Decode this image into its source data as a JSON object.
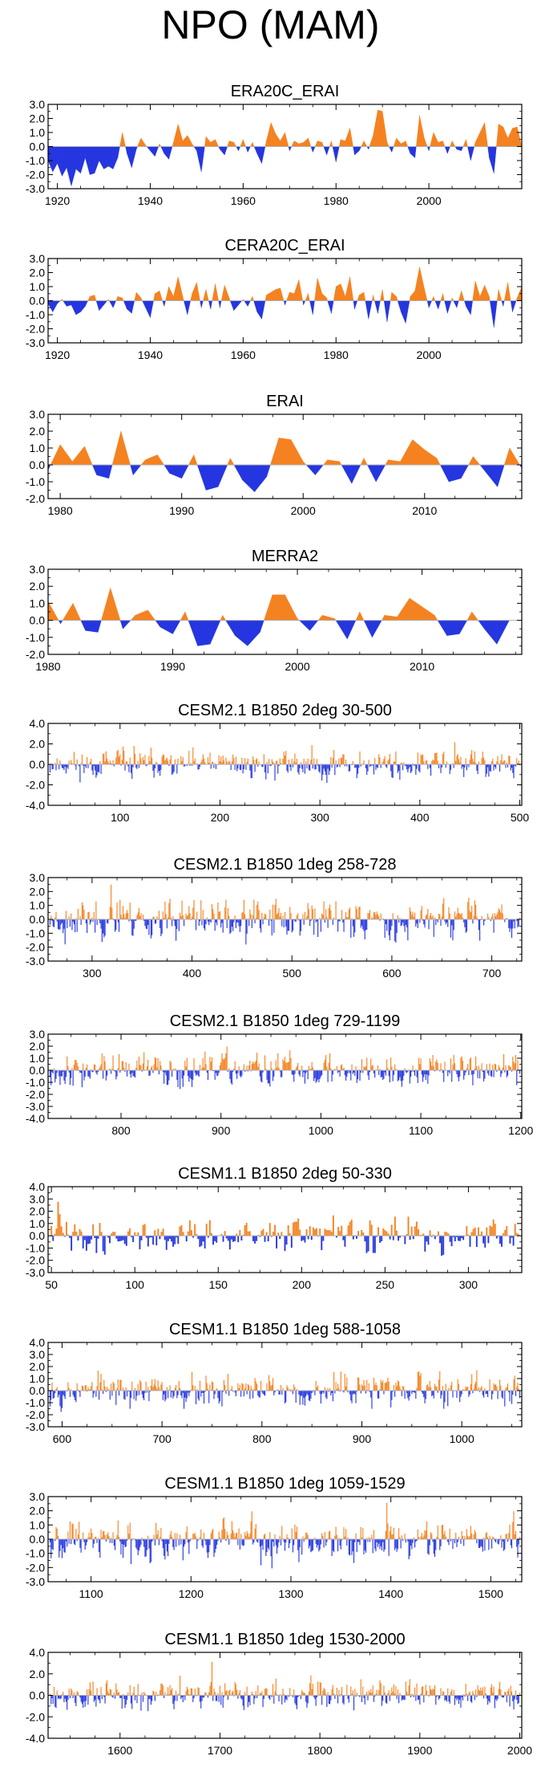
{
  "title": "NPO (MAM)",
  "colors": {
    "positive": "#f58220",
    "negative": "#2536e0",
    "axis": "#000000",
    "zero": "#b0b0b0"
  },
  "chart_data": [
    {
      "title": "ERA20C_ERAI",
      "type": "area",
      "xlim": [
        1918,
        2020
      ],
      "ylim": [
        -3.0,
        3.0
      ],
      "yticks": [
        "3.0",
        "2.0",
        "1.0",
        "0.0",
        "-1.0",
        "-2.0",
        "-3.0"
      ],
      "xticks": [
        1920,
        1940,
        1960,
        1980,
        2000
      ],
      "xtick_labels": [
        "1920",
        "1940",
        "1960",
        "1980",
        "2000"
      ],
      "x": [
        1918,
        1919,
        1920,
        1921,
        1922,
        1923,
        1924,
        1925,
        1926,
        1927,
        1928,
        1929,
        1930,
        1931,
        1932,
        1933,
        1934,
        1935,
        1936,
        1937,
        1938,
        1939,
        1940,
        1941,
        1942,
        1943,
        1944,
        1945,
        1946,
        1947,
        1948,
        1949,
        1950,
        1951,
        1952,
        1953,
        1954,
        1955,
        1956,
        1957,
        1958,
        1959,
        1960,
        1961,
        1962,
        1963,
        1964,
        1965,
        1966,
        1967,
        1968,
        1969,
        1970,
        1971,
        1972,
        1973,
        1974,
        1975,
        1976,
        1977,
        1978,
        1979,
        1980,
        1981,
        1982,
        1983,
        1984,
        1985,
        1986,
        1987,
        1988,
        1989,
        1990,
        1991,
        1992,
        1993,
        1994,
        1995,
        1996,
        1997,
        1998,
        1999,
        2000,
        2001,
        2002,
        2003,
        2004,
        2005,
        2006,
        2007,
        2008,
        2009,
        2010,
        2011,
        2012,
        2013,
        2014,
        2015,
        2016,
        2017,
        2018,
        2019,
        2020
      ],
      "values": [
        -1.0,
        -1.8,
        -1.2,
        -2.1,
        -1.5,
        -2.8,
        -1.6,
        -1.9,
        -0.8,
        -2.0,
        -1.9,
        -1.0,
        -1.6,
        -1.4,
        -1.6,
        -0.8,
        1.0,
        -0.5,
        -1.5,
        -0.2,
        0.6,
        0.1,
        -0.3,
        -0.7,
        0.2,
        -0.5,
        -0.9,
        0.3,
        1.6,
        0.4,
        0.8,
        0.2,
        -0.3,
        -1.8,
        0.7,
        0.3,
        0.5,
        -0.2,
        -0.6,
        0.4,
        0.3,
        -0.3,
        0.5,
        -0.4,
        0.3,
        -0.5,
        -1.2,
        0.4,
        1.7,
        0.9,
        0.4,
        1.0,
        -0.3,
        0.4,
        0.2,
        0.3,
        0.6,
        -0.4,
        0.4,
        0.3,
        -0.6,
        0.4,
        -1.1,
        0.5,
        0.4,
        1.3,
        -0.6,
        -0.3,
        0.4,
        -0.2,
        0.8,
        2.6,
        2.5,
        0.3,
        -0.4,
        0.6,
        0.2,
        0.4,
        -0.5,
        -0.8,
        2.2,
        0.6,
        -0.3,
        1.0,
        0.3,
        0.4,
        -0.5,
        0.4,
        -0.2,
        -0.3,
        0.5,
        -1.0,
        0.3,
        1.0,
        1.7,
        -0.8,
        -1.9,
        1.6,
        1.4,
        0.6,
        1.3,
        1.4,
        0.0
      ]
    },
    {
      "title": "CERA20C_ERAI",
      "type": "area",
      "xlim": [
        1918,
        2020
      ],
      "ylim": [
        -3.0,
        3.0
      ],
      "yticks": [
        "3.0",
        "2.0",
        "1.0",
        "0.0",
        "-1.0",
        "-2.0",
        "-3.0"
      ],
      "xticks": [
        1920,
        1940,
        1960,
        1980,
        2000
      ],
      "xtick_labels": [
        "1920",
        "1940",
        "1960",
        "1980",
        "2000"
      ],
      "x": [
        1918,
        1919,
        1920,
        1921,
        1922,
        1923,
        1924,
        1925,
        1926,
        1927,
        1928,
        1929,
        1930,
        1931,
        1932,
        1933,
        1934,
        1935,
        1936,
        1937,
        1938,
        1939,
        1940,
        1941,
        1942,
        1943,
        1944,
        1945,
        1946,
        1947,
        1948,
        1949,
        1950,
        1951,
        1952,
        1953,
        1954,
        1955,
        1956,
        1957,
        1958,
        1959,
        1960,
        1961,
        1962,
        1963,
        1964,
        1965,
        1966,
        1967,
        1968,
        1969,
        1970,
        1971,
        1972,
        1973,
        1974,
        1975,
        1976,
        1977,
        1978,
        1979,
        1980,
        1981,
        1982,
        1983,
        1984,
        1985,
        1986,
        1987,
        1988,
        1989,
        1990,
        1991,
        1992,
        1993,
        1994,
        1995,
        1996,
        1997,
        1998,
        1999,
        2000,
        2001,
        2002,
        2003,
        2004,
        2005,
        2006,
        2007,
        2008,
        2009,
        2010,
        2011,
        2012,
        2013,
        2014,
        2015,
        2016,
        2017,
        2018,
        2019,
        2020
      ],
      "values": [
        -0.2,
        -0.8,
        -0.2,
        0.1,
        -0.4,
        -0.3,
        -1.0,
        -0.8,
        -0.4,
        0.3,
        0.4,
        -0.7,
        -0.3,
        0.1,
        -0.5,
        0.3,
        0.2,
        -0.6,
        -0.9,
        0.6,
        0.2,
        -0.5,
        -1.2,
        0.5,
        0.7,
        -0.4,
        1.0,
        0.3,
        1.7,
        0.3,
        -1.0,
        0.5,
        1.3,
        -0.5,
        0.8,
        -0.6,
        1.2,
        -0.5,
        1.1,
        0.2,
        -0.7,
        -0.3,
        0.1,
        -0.4,
        0.3,
        -0.8,
        -1.3,
        0.4,
        0.6,
        0.8,
        0.9,
        -0.3,
        0.6,
        0.5,
        1.5,
        -0.3,
        0.5,
        -1.0,
        1.6,
        0.5,
        0.2,
        -0.9,
        1.0,
        1.2,
        0.3,
        1.7,
        -0.6,
        0.4,
        0.6,
        -1.3,
        0.4,
        -0.9,
        0.8,
        -1.5,
        0.6,
        0.3,
        -0.8,
        -1.6,
        0.3,
        0.7,
        2.4,
        0.9,
        -0.5,
        0.3,
        -0.6,
        0.5,
        -0.9,
        0.2,
        -0.5,
        0.7,
        -0.4,
        -1.0,
        1.4,
        0.3,
        1.1,
        0.3,
        -1.9,
        0.8,
        -0.4,
        1.3,
        -0.8,
        0.2,
        1.0
      ]
    },
    {
      "title": "ERAI",
      "type": "area",
      "xlim": [
        1979,
        2018
      ],
      "ylim": [
        -2.0,
        3.0
      ],
      "yticks": [
        "3.0",
        "2.0",
        "1.0",
        "0.0",
        "-1.0",
        "-2.0"
      ],
      "xticks": [
        1980,
        1990,
        2000,
        2010
      ],
      "xtick_labels": [
        "1980",
        "1990",
        "2000",
        "2010"
      ],
      "x": [
        1979,
        1980,
        1981,
        1982,
        1983,
        1984,
        1985,
        1986,
        1987,
        1988,
        1989,
        1990,
        1991,
        1992,
        1993,
        1994,
        1995,
        1996,
        1997,
        1998,
        1999,
        2000,
        2001,
        2002,
        2003,
        2004,
        2005,
        2006,
        2007,
        2008,
        2009,
        2010,
        2011,
        2012,
        2013,
        2014,
        2015,
        2016,
        2017,
        2018
      ],
      "values": [
        -0.3,
        1.2,
        0.2,
        1.1,
        -0.6,
        -0.8,
        2.0,
        -0.6,
        0.3,
        0.6,
        -0.5,
        -0.8,
        0.6,
        -1.5,
        -1.3,
        0.4,
        -0.9,
        -1.6,
        -0.7,
        1.6,
        1.5,
        0.2,
        -0.6,
        0.3,
        0.2,
        -1.1,
        0.4,
        -1.0,
        0.3,
        0.2,
        1.5,
        0.9,
        0.4,
        -1.0,
        -0.8,
        0.5,
        -0.4,
        -1.3,
        1.0,
        -0.2
      ]
    },
    {
      "title": "MERRA2",
      "type": "area",
      "xlim": [
        1980,
        2018
      ],
      "ylim": [
        -2.0,
        3.0
      ],
      "yticks": [
        "3.0",
        "2.0",
        "1.0",
        "0.0",
        "-1.0",
        "-2.0"
      ],
      "xticks": [
        1980,
        1990,
        2000,
        2010
      ],
      "xtick_labels": [
        "1980",
        "1990",
        "2000",
        "2010"
      ],
      "x": [
        1980,
        1981,
        1982,
        1983,
        1984,
        1985,
        1986,
        1987,
        1988,
        1989,
        1990,
        1991,
        1992,
        1993,
        1994,
        1995,
        1996,
        1997,
        1998,
        1999,
        2000,
        2001,
        2002,
        2003,
        2004,
        2005,
        2006,
        2007,
        2008,
        2009,
        2010,
        2011,
        2012,
        2013,
        2014,
        2015,
        2016,
        2017
      ],
      "values": [
        1.1,
        -0.2,
        1.0,
        -0.6,
        -0.7,
        1.9,
        -0.5,
        0.3,
        0.6,
        -0.4,
        -0.8,
        0.5,
        -1.5,
        -1.4,
        0.3,
        -0.9,
        -1.5,
        -0.7,
        1.5,
        1.5,
        0.1,
        -0.6,
        0.3,
        0.1,
        -1.1,
        0.5,
        -1.0,
        0.3,
        0.2,
        1.3,
        0.8,
        0.3,
        -0.9,
        -0.8,
        0.5,
        -0.5,
        -1.4,
        0.0
      ]
    },
    {
      "title": "CESM2.1 B1850 2deg 30-500",
      "type": "bar",
      "xlim": [
        28,
        502
      ],
      "ylim": [
        -4.0,
        4.0
      ],
      "yticks": [
        "4.0",
        "2.0",
        "0.0",
        "-2.0",
        "-4.0"
      ],
      "xticks": [
        100,
        200,
        300,
        400,
        500
      ],
      "xtick_labels": [
        "100",
        "200",
        "300",
        "400",
        "500"
      ],
      "x_start": 30,
      "amplitude": [
        2.8,
        3.0
      ],
      "seed": 11,
      "values": []
    },
    {
      "title": "CESM2.1 B1850 1deg 258-728",
      "type": "bar",
      "xlim": [
        256,
        730
      ],
      "ylim": [
        -3.0,
        3.0
      ],
      "yticks": [
        "3.0",
        "2.0",
        "1.0",
        "0.0",
        "-1.0",
        "-2.0",
        "-3.0"
      ],
      "xticks": [
        300,
        400,
        500,
        600,
        700
      ],
      "xtick_labels": [
        "300",
        "400",
        "500",
        "600",
        "700"
      ],
      "x_start": 258,
      "amplitude": [
        2.5,
        2.9
      ],
      "seed": 23,
      "values": []
    },
    {
      "title": "CESM2.1 B1850 1deg 729-1199",
      "type": "bar",
      "xlim": [
        727,
        1201
      ],
      "ylim": [
        -4.0,
        3.0
      ],
      "yticks": [
        "3.0",
        "2.0",
        "1.0",
        "0.0",
        "-1.0",
        "-2.0",
        "-3.0",
        "-4.0"
      ],
      "xticks": [
        800,
        900,
        1000,
        1100,
        1200
      ],
      "xtick_labels": [
        "800",
        "900",
        "1000",
        "1100",
        "1200"
      ],
      "x_start": 729,
      "amplitude": [
        2.6,
        3.3
      ],
      "seed": 37,
      "values": []
    },
    {
      "title": "CESM1.1 B1850 2deg 50-330",
      "type": "bar",
      "xlim": [
        48,
        332
      ],
      "ylim": [
        -3.0,
        4.0
      ],
      "yticks": [
        "4.0",
        "3.0",
        "2.0",
        "1.0",
        "0.0",
        "-1.0",
        "-2.0",
        "-3.0"
      ],
      "xticks": [
        50,
        100,
        150,
        200,
        250,
        300
      ],
      "xtick_labels": [
        "50",
        "100",
        "150",
        "200",
        "250",
        "300"
      ],
      "x_start": 50,
      "amplitude": [
        3.0,
        2.6
      ],
      "seed": 41,
      "values": []
    },
    {
      "title": "CESM1.1 B1850 1deg 588-1058",
      "type": "bar",
      "xlim": [
        586,
        1060
      ],
      "ylim": [
        -3.0,
        4.0
      ],
      "yticks": [
        "4.0",
        "3.0",
        "2.0",
        "1.0",
        "0.0",
        "-1.0",
        "-2.0",
        "-3.0"
      ],
      "xticks": [
        600,
        700,
        800,
        900,
        1000
      ],
      "xtick_labels": [
        "600",
        "700",
        "800",
        "900",
        "1000"
      ],
      "x_start": 588,
      "amplitude": [
        3.3,
        2.5
      ],
      "seed": 53,
      "values": []
    },
    {
      "title": "CESM1.1 B1850 1deg 1059-1529",
      "type": "bar",
      "xlim": [
        1057,
        1531
      ],
      "ylim": [
        -3.0,
        3.0
      ],
      "yticks": [
        "3.0",
        "2.0",
        "1.0",
        "0.0",
        "-1.0",
        "-2.0",
        "-3.0"
      ],
      "xticks": [
        1100,
        1200,
        1300,
        1400,
        1500
      ],
      "xtick_labels": [
        "1100",
        "1200",
        "1300",
        "1400",
        "1500"
      ],
      "x_start": 1059,
      "amplitude": [
        2.6,
        2.8
      ],
      "seed": 67,
      "values": []
    },
    {
      "title": "CESM1.1 B1850 1deg 1530-2000",
      "type": "bar",
      "xlim": [
        1528,
        2002
      ],
      "ylim": [
        -4.0,
        4.0
      ],
      "yticks": [
        "4.0",
        "2.0",
        "0.0",
        "-2.0",
        "-4.0"
      ],
      "xticks": [
        1600,
        1700,
        1800,
        1900,
        2000
      ],
      "xtick_labels": [
        "1600",
        "1700",
        "1800",
        "1900",
        "2000"
      ],
      "x_start": 1530,
      "amplitude": [
        3.2,
        3.0
      ],
      "seed": 79,
      "values": []
    }
  ]
}
